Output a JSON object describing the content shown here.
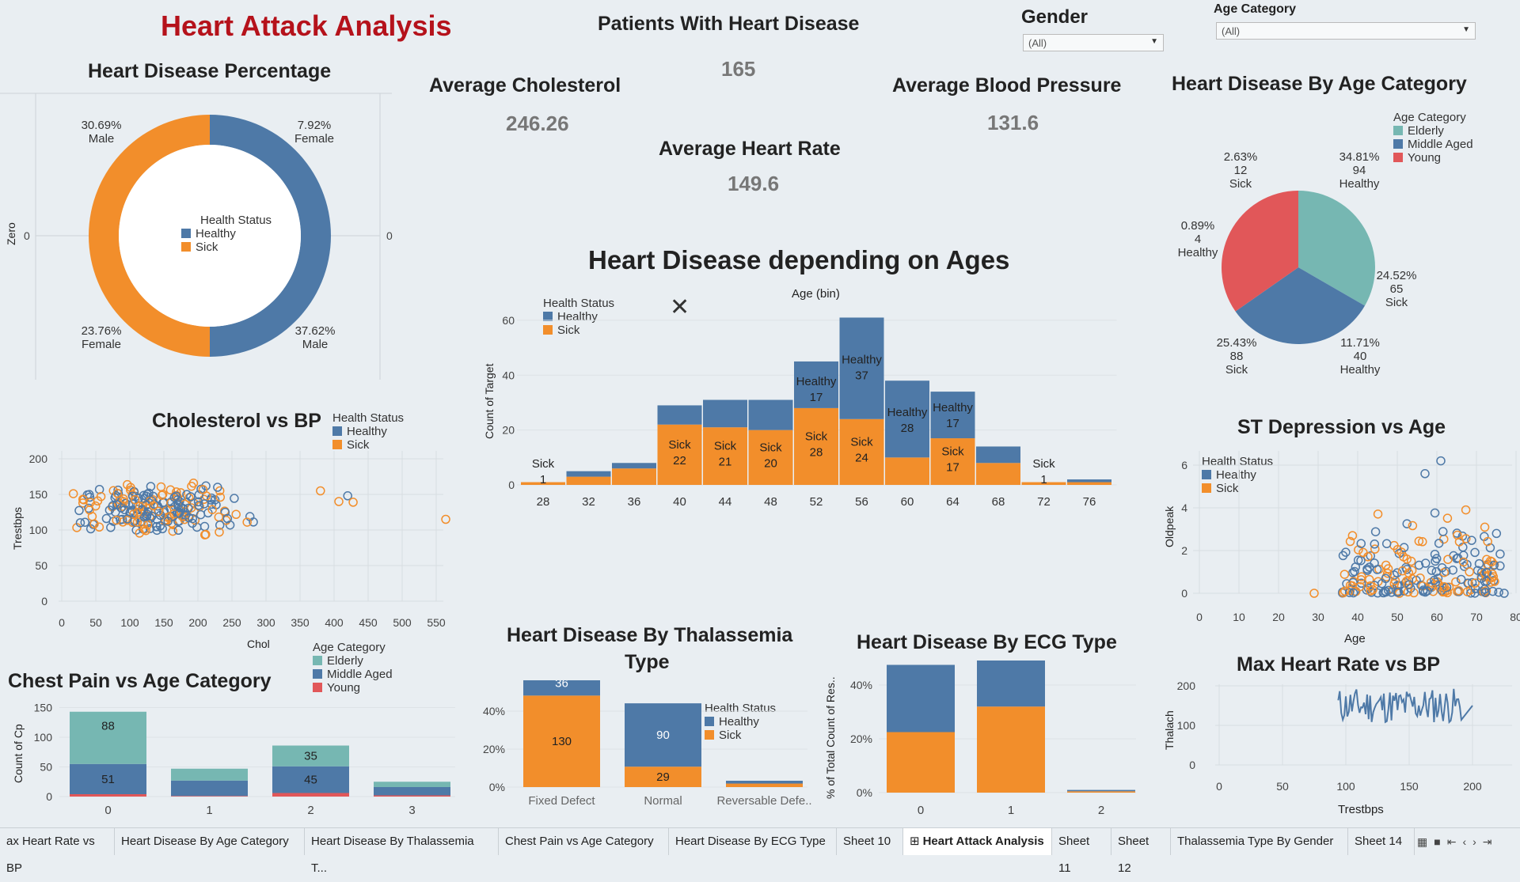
{
  "dashboard": {
    "title": "Heart Attack  Analysis",
    "patients_title": "Patients With Heart Disease",
    "patients_value": "165",
    "avg_chol_title": "Average Cholesterol",
    "avg_chol_value": "246.26",
    "avg_bp_title": "Average Blood Pressure",
    "avg_bp_value": "131.6",
    "avg_hr_title": "Average Heart Rate",
    "avg_hr_value": "149.6"
  },
  "filters": {
    "gender_label": "Gender",
    "gender_value": "(All)",
    "age_label": "Age Category",
    "age_value": "(All)"
  },
  "colors": {
    "healthy": "#4e79a7",
    "sick": "#f28e2b",
    "elderly": "#76b7b2",
    "middle": "#4e79a7",
    "young": "#e15759",
    "title_red": "#b5121b"
  },
  "legends": {
    "health_status": "Health Status",
    "healthy": "Healthy",
    "sick": "Sick",
    "age_category": "Age Category",
    "elderly": "Elderly",
    "middle": "Middle Aged",
    "young": "Young"
  },
  "donut": {
    "title": "Heart Disease Percentage",
    "axis_label": "Zero",
    "zero_left": "0",
    "zero_right": "0",
    "labels": [
      {
        "pct": "30.69%",
        "name": "Male"
      },
      {
        "pct": "7.92%",
        "name": "Female"
      },
      {
        "pct": "23.76%",
        "name": "Female"
      },
      {
        "pct": "37.62%",
        "name": "Male"
      }
    ]
  },
  "chol_bp": {
    "title": "Cholesterol vs BP",
    "xlabel": "Chol",
    "ylabel": "Trestbps",
    "xticks": [
      "0",
      "50",
      "100",
      "150",
      "200",
      "250",
      "300",
      "350",
      "400",
      "450",
      "500",
      "550"
    ],
    "yticks": [
      "0",
      "50",
      "100",
      "150",
      "200"
    ]
  },
  "ages_chart": {
    "title": "Heart Disease depending on Ages",
    "xlabel": "Age (bin)",
    "ylabel": "Count of Target",
    "yticks": [
      "0",
      "20",
      "40",
      "60"
    ],
    "bins": [
      "28",
      "32",
      "36",
      "40",
      "44",
      "48",
      "52",
      "56",
      "60",
      "64",
      "68",
      "72",
      "76"
    ],
    "bar_labels": [
      {
        "status": "Sick",
        "count": "1"
      },
      {
        "status": "Sick",
        "count": "22"
      },
      {
        "status": "Sick",
        "count": "21"
      },
      {
        "status": "Sick",
        "count": "20"
      },
      {
        "status": "Sick",
        "count": "28"
      },
      {
        "status": "Healthy",
        "count": "17"
      },
      {
        "status": "Sick",
        "count": "24"
      },
      {
        "status": "Healthy",
        "count": "37"
      },
      {
        "status": "Healthy",
        "count": "28"
      },
      {
        "status": "Sick",
        "count": "17"
      },
      {
        "status": "Healthy",
        "count": "17"
      },
      {
        "status": "Sick",
        "count": "1"
      }
    ]
  },
  "age_cat_pie": {
    "title": "Heart Disease By Age Category",
    "labels": [
      {
        "pct": "2.63%",
        "count": "12",
        "status": "Sick"
      },
      {
        "pct": "34.81%",
        "count": "94",
        "status": "Healthy"
      },
      {
        "pct": "0.89%",
        "count": "4",
        "status": "Healthy"
      },
      {
        "pct": "24.52%",
        "count": "65",
        "status": "Sick"
      },
      {
        "pct": "25.43%",
        "count": "88",
        "status": "Sick"
      },
      {
        "pct": "11.71%",
        "count": "40",
        "status": "Healthy"
      }
    ]
  },
  "st_dep": {
    "title": "ST Depression vs Age",
    "xlabel": "Age",
    "ylabel": "Oldpeak",
    "xticks": [
      "0",
      "10",
      "20",
      "30",
      "40",
      "50",
      "60",
      "70",
      "80"
    ],
    "yticks": [
      "0",
      "2",
      "4",
      "6"
    ]
  },
  "chest_pain": {
    "title": "Chest Pain vs Age Category",
    "ylabel": "Count of Cp",
    "yticks": [
      "0",
      "50",
      "100",
      "150"
    ],
    "xticks": [
      "0",
      "1",
      "2",
      "3"
    ],
    "bar_labels": [
      "88",
      "51",
      "35",
      "45"
    ]
  },
  "thal": {
    "title_line1": "Heart Disease By Thalassemia",
    "title_line2": "Type",
    "yticks": [
      "0%",
      "20%",
      "40%"
    ],
    "xticks": [
      "Fixed Defect",
      "Normal",
      "Reversable Defe.."
    ],
    "bar_labels": [
      "36",
      "130",
      "90",
      "29"
    ]
  },
  "ecg": {
    "title": "Heart Disease By ECG Type",
    "ylabel": "% of Total Count of Res..",
    "yticks": [
      "0%",
      "20%",
      "40%"
    ],
    "xticks": [
      "0",
      "1",
      "2"
    ]
  },
  "maxhr": {
    "title": "Max Heart Rate vs BP",
    "xlabel": "Trestbps",
    "ylabel": "Thalach",
    "xticks": [
      "0",
      "50",
      "100",
      "150",
      "200"
    ],
    "yticks": [
      "0",
      "100",
      "200"
    ]
  },
  "tabs": [
    "ax Heart Rate vs BP",
    "Heart Disease By Age Category",
    "Heart Disease By Thalassemia T...",
    "Chest Pain vs Age Category",
    "Heart Disease By ECG Type",
    "Sheet 10",
    "Heart Attack Analysis",
    "Sheet 11",
    "Sheet 12",
    "Thalassemia Type By Gender",
    "Sheet 14"
  ],
  "chart_data": [
    {
      "type": "bar",
      "title": "Heart Disease depending on Ages",
      "xlabel": "Age (bin)",
      "ylabel": "Count of Target",
      "categories": [
        "28",
        "32",
        "36",
        "40",
        "44",
        "48",
        "52",
        "56",
        "60",
        "64",
        "68",
        "72",
        "76"
      ],
      "series": [
        {
          "name": "Sick",
          "values": [
            1,
            3,
            6,
            22,
            21,
            20,
            28,
            24,
            10,
            17,
            8,
            1,
            1
          ]
        },
        {
          "name": "Healthy",
          "values": [
            0,
            2,
            2,
            7,
            10,
            11,
            17,
            37,
            28,
            17,
            6,
            0,
            1
          ]
        }
      ],
      "ylim": [
        0,
        65
      ]
    },
    {
      "type": "bar",
      "title": "Chest Pain vs Age Category",
      "ylabel": "Count of Cp",
      "categories": [
        "0",
        "1",
        "2",
        "3"
      ],
      "series": [
        {
          "name": "Young",
          "values": [
            4,
            1,
            6,
            2
          ]
        },
        {
          "name": "Middle Aged",
          "values": [
            51,
            26,
            45,
            14
          ]
        },
        {
          "name": "Elderly",
          "values": [
            88,
            20,
            35,
            9
          ]
        }
      ],
      "ylim": [
        0,
        160
      ]
    },
    {
      "type": "bar",
      "title": "Heart Disease By Thalassemia Type",
      "categories": [
        "Fixed Defect",
        "Normal",
        "Reversable Defe.."
      ],
      "series": [
        {
          "name": "Sick",
          "values": [
            130,
            29,
            5
          ]
        },
        {
          "name": "Healthy",
          "values": [
            36,
            90,
            4
          ]
        }
      ]
    },
    {
      "type": "bar",
      "title": "Heart Disease By ECG Type",
      "ylabel": "% of Total Count of Res..",
      "categories": [
        "0",
        "1",
        "2"
      ],
      "series": [
        {
          "name": "Sick",
          "values": [
            0.225,
            0.32,
            0.005
          ]
        },
        {
          "name": "Healthy",
          "values": [
            0.25,
            0.185,
            0.005
          ]
        }
      ]
    }
  ]
}
